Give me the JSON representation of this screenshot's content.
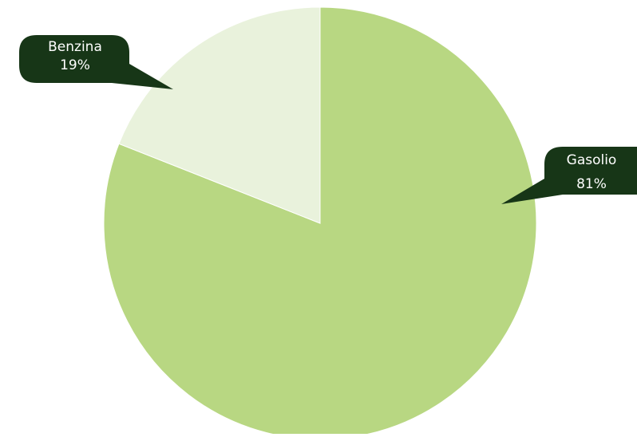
{
  "chart_data": {
    "type": "pie",
    "slices": [
      {
        "label": "Gasolio",
        "value": 81,
        "value_label": "81%",
        "color": "#b8d782"
      },
      {
        "label": "Benzina",
        "value": 19,
        "value_label": "19%",
        "color": "#e9f2dc"
      }
    ],
    "start_angle": "12 o'clock",
    "direction": "clockwise",
    "labels_style": "dark-green callouts with category and percent",
    "legend": "none"
  },
  "colors": {
    "callout_bg": "#173617",
    "callout_text": "#ffffff",
    "slice_stroke": "#ffffff"
  }
}
